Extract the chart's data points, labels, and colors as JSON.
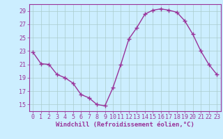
{
  "x": [
    0,
    1,
    2,
    3,
    4,
    5,
    6,
    7,
    8,
    9,
    10,
    11,
    12,
    13,
    14,
    15,
    16,
    17,
    18,
    19,
    20,
    21,
    22,
    23
  ],
  "y": [
    22.8,
    21.1,
    21.0,
    19.5,
    19.0,
    18.2,
    16.5,
    16.0,
    15.0,
    14.8,
    17.5,
    21.0,
    24.8,
    26.5,
    28.5,
    29.1,
    29.3,
    29.1,
    28.8,
    27.5,
    25.5,
    23.0,
    21.0,
    19.5
  ],
  "line_color": "#993399",
  "marker_color": "#993399",
  "bg_color": "#cceeff",
  "grid_color": "#aacccc",
  "axis_color": "#993399",
  "tick_color": "#993399",
  "xlabel": "Windchill (Refroidissement éolien,°C)",
  "ylabel": "",
  "xlim": [
    -0.5,
    23.5
  ],
  "ylim": [
    14.0,
    30.0
  ],
  "yticks": [
    15,
    17,
    19,
    21,
    23,
    25,
    27,
    29
  ],
  "xticks": [
    0,
    1,
    2,
    3,
    4,
    5,
    6,
    7,
    8,
    9,
    10,
    11,
    12,
    13,
    14,
    15,
    16,
    17,
    18,
    19,
    20,
    21,
    22,
    23
  ],
  "xlabel_fontsize": 6.5,
  "tick_fontsize": 6.0,
  "line_width": 1.0,
  "marker_size": 4,
  "marker_style": "+"
}
